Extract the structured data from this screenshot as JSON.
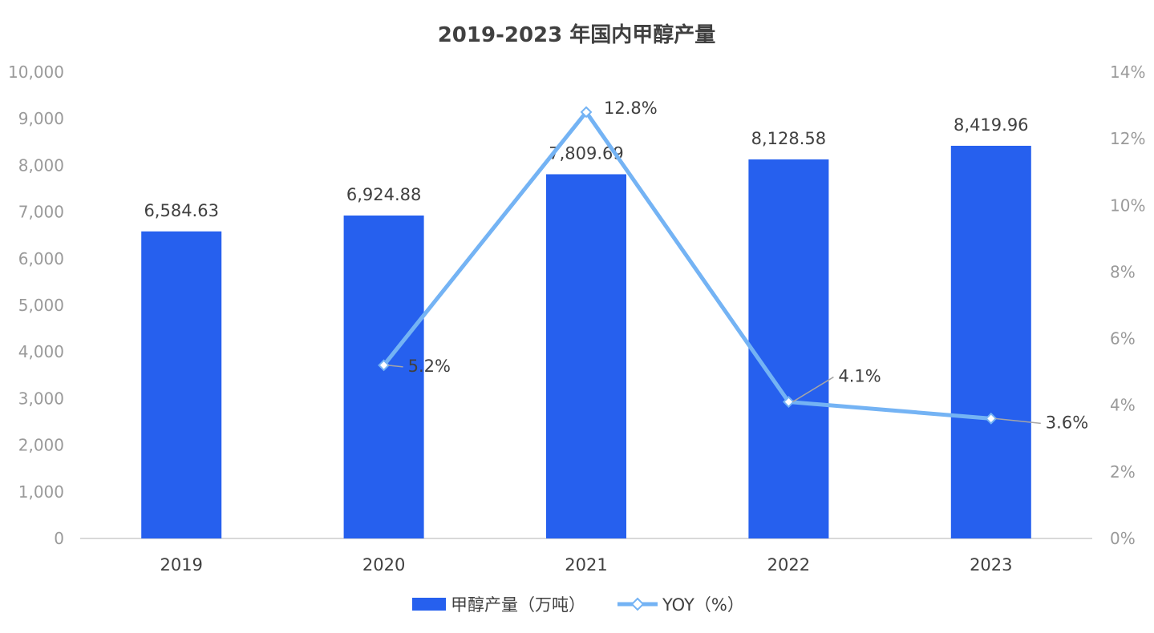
{
  "chart_data": {
    "type": "bar",
    "title": "2019-2023 年国内甲醇产量",
    "categories": [
      "2019",
      "2020",
      "2021",
      "2022",
      "2023"
    ],
    "series": [
      {
        "name": "甲醇产量（万吨）",
        "type": "bar",
        "axis": "left",
        "color": "#2660EE",
        "values": [
          6584.63,
          6924.88,
          7809.69,
          8128.58,
          8419.96
        ],
        "labels": [
          "6,584.63",
          "6,924.88",
          "7,809.69",
          "8,128.58",
          "8,419.96"
        ]
      },
      {
        "name": "YOY（%）",
        "type": "line",
        "axis": "right",
        "color": "#74B3F4",
        "values": [
          null,
          5.2,
          12.8,
          4.1,
          3.6
        ],
        "labels": [
          "",
          "5.2%",
          "12.8%",
          "4.1%",
          "3.6%"
        ]
      }
    ],
    "left_axis": {
      "ylim": [
        0,
        10000
      ],
      "ticks": [
        "0",
        "1,000",
        "2,000",
        "3,000",
        "4,000",
        "5,000",
        "6,000",
        "7,000",
        "8,000",
        "9,000",
        "10,000"
      ]
    },
    "right_axis": {
      "ylim": [
        0,
        14
      ],
      "ticks": [
        "0%",
        "2%",
        "4%",
        "6%",
        "8%",
        "10%",
        "12%",
        "14%"
      ]
    },
    "grid": false,
    "legend_position": "bottom"
  }
}
